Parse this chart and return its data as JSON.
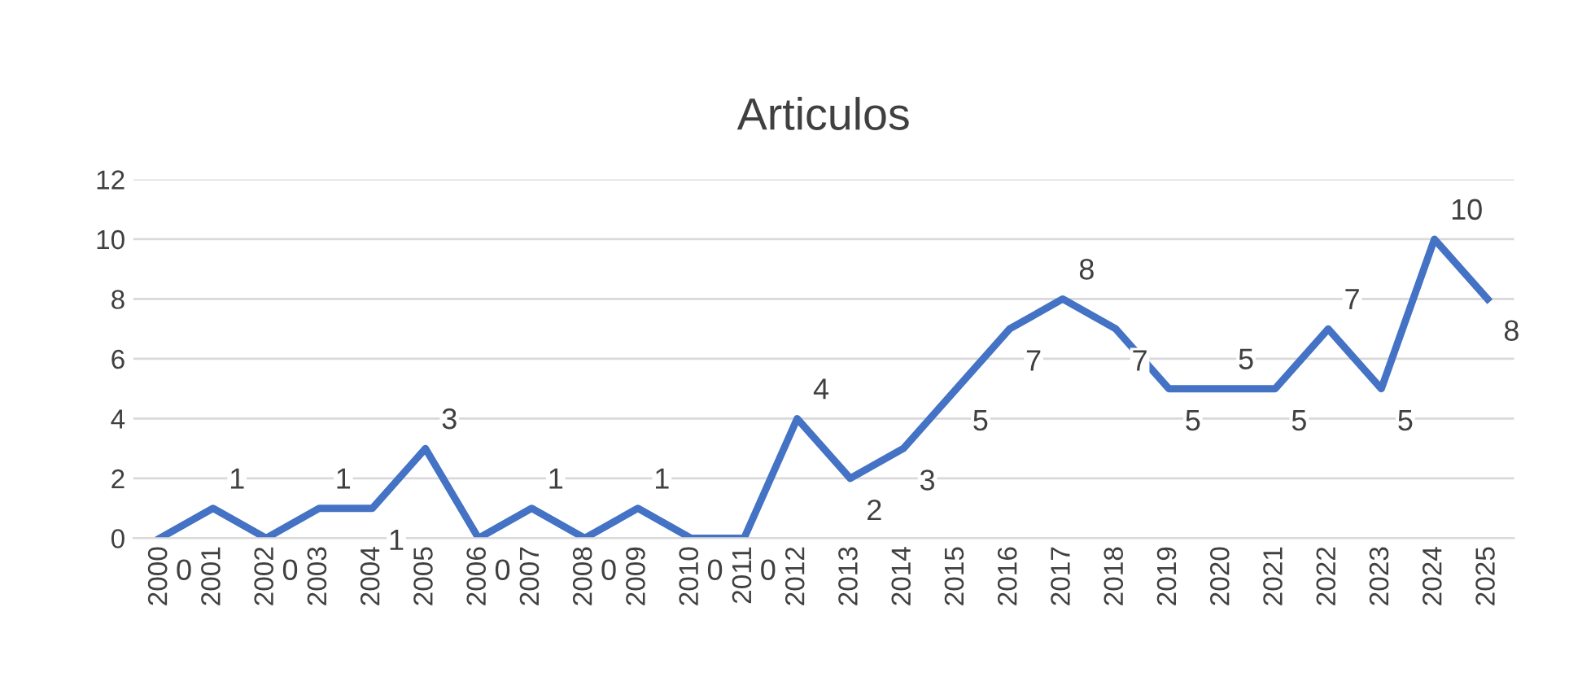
{
  "chart_data": {
    "type": "line",
    "title": "Articulos",
    "categories": [
      "2000",
      "2001",
      "2002",
      "2003",
      "2004",
      "2005",
      "2006",
      "2007",
      "2008",
      "2009",
      "2010",
      "2011",
      "2012",
      "2013",
      "2014",
      "2015",
      "2016",
      "2017",
      "2018",
      "2019",
      "2020",
      "2021",
      "2022",
      "2023",
      "2024",
      "2025"
    ],
    "series": [
      {
        "color": "#4472c4",
        "values": [
          0,
          1,
          0,
          1,
          1,
          3,
          0,
          1,
          0,
          1,
          0,
          0,
          4,
          2,
          3,
          5,
          7,
          8,
          7,
          5,
          5,
          5,
          7,
          5,
          10,
          8
        ]
      }
    ],
    "ylim": [
      0,
      12
    ],
    "yticks": [
      0,
      2,
      4,
      6,
      8,
      10,
      12
    ],
    "grid": "y",
    "data_labels": true,
    "legend": false,
    "marker": "none",
    "line_style": "solid"
  }
}
